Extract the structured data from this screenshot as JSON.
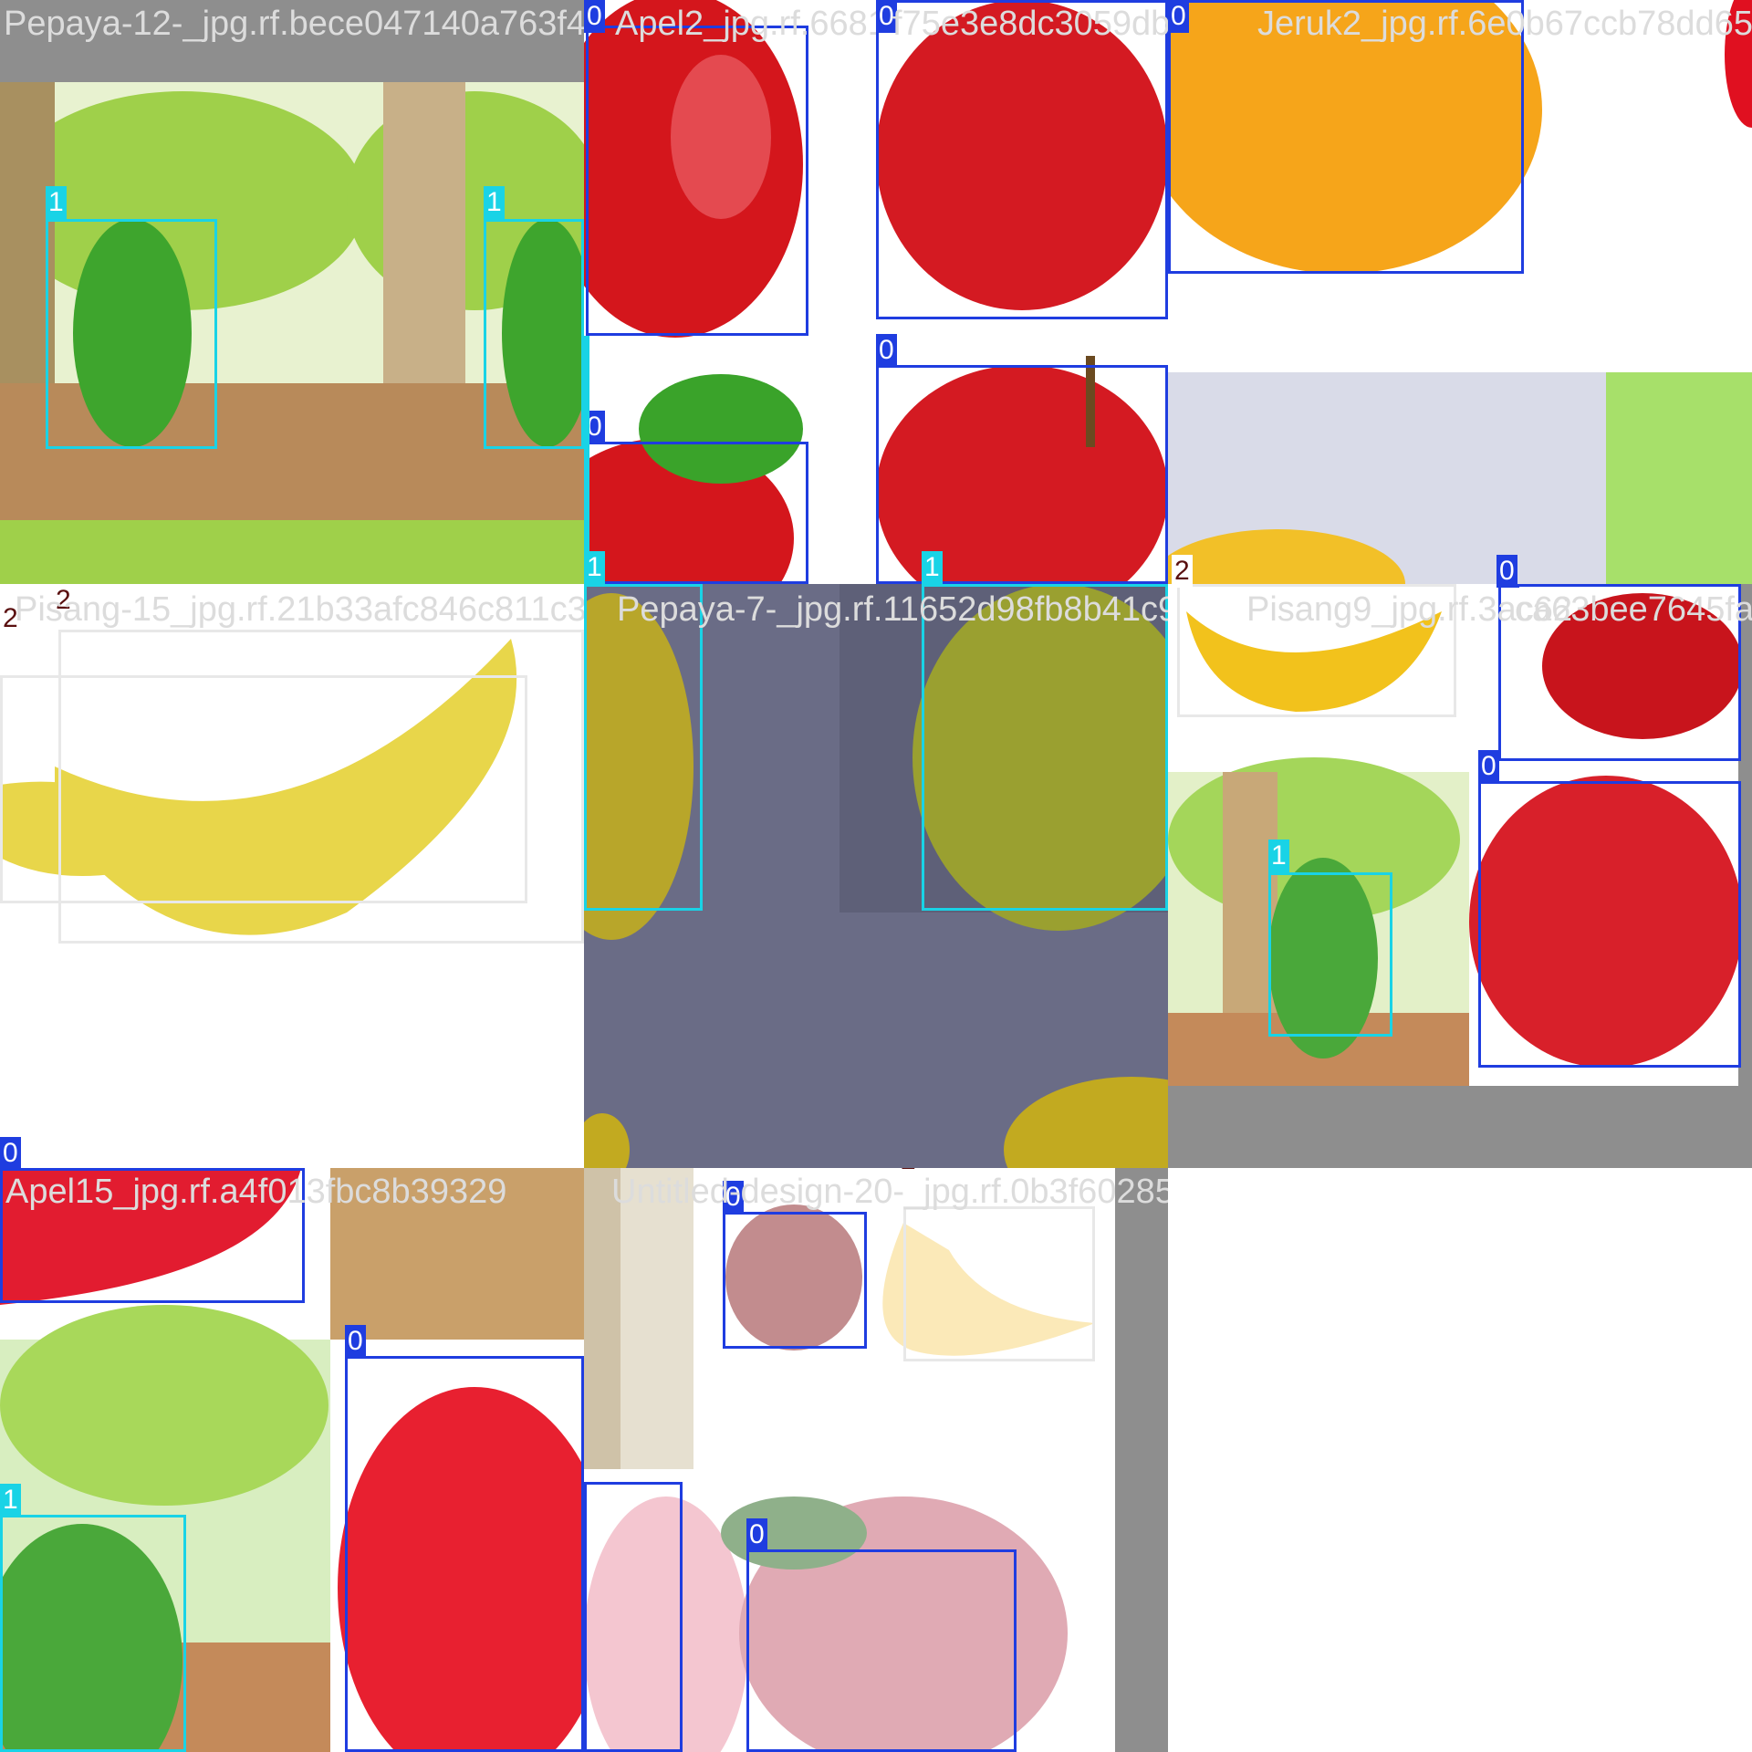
{
  "colors": {
    "class_0": "#1f3de0",
    "class_1": "#19d3e6",
    "class_2": "#e8e8e8",
    "padding": "#8e8e8e"
  },
  "mosaics": [
    {
      "filename": "Pepaya-12-_jpg.rf.bece047140a763f4",
      "tiles": [
        {
          "label": "1"
        },
        {
          "label": "1"
        }
      ]
    },
    {
      "filename": "Apel2_jpg.rf.66814",
      "labels": [
        "0",
        "0",
        "0"
      ]
    },
    {
      "filename": "f75e3e8dc3059db",
      "labels": [
        "0",
        "0"
      ]
    },
    {
      "filename": "Jeruk2_jpg.rf.6e0b67ccb78dd652cee8",
      "labels": [
        "0"
      ]
    },
    {
      "filename": "Pisang-15_jpg.rf.21b33afc846c811c39",
      "labels": [
        "2",
        "2"
      ]
    },
    {
      "filename": "Pepaya-7-_jpg.rf.11652d98fb8b41c98",
      "labels": [
        "1",
        "1"
      ]
    },
    {
      "filename": "Pisang9_jpg.rf.3ac62",
      "labels": [
        "2",
        "0",
        "1",
        "0"
      ]
    },
    {
      "filename": "ca63bee7645fa3",
      "labels": []
    },
    {
      "filename": "Apel15_jpg.rf.a4f013fbc8b39329",
      "labels": [
        "0",
        "0",
        "1",
        "0"
      ]
    },
    {
      "filename": "Untitled-design-20-_jpg.rf.0b3f60285cc55",
      "labels": [
        "0",
        "2",
        "0"
      ]
    }
  ]
}
